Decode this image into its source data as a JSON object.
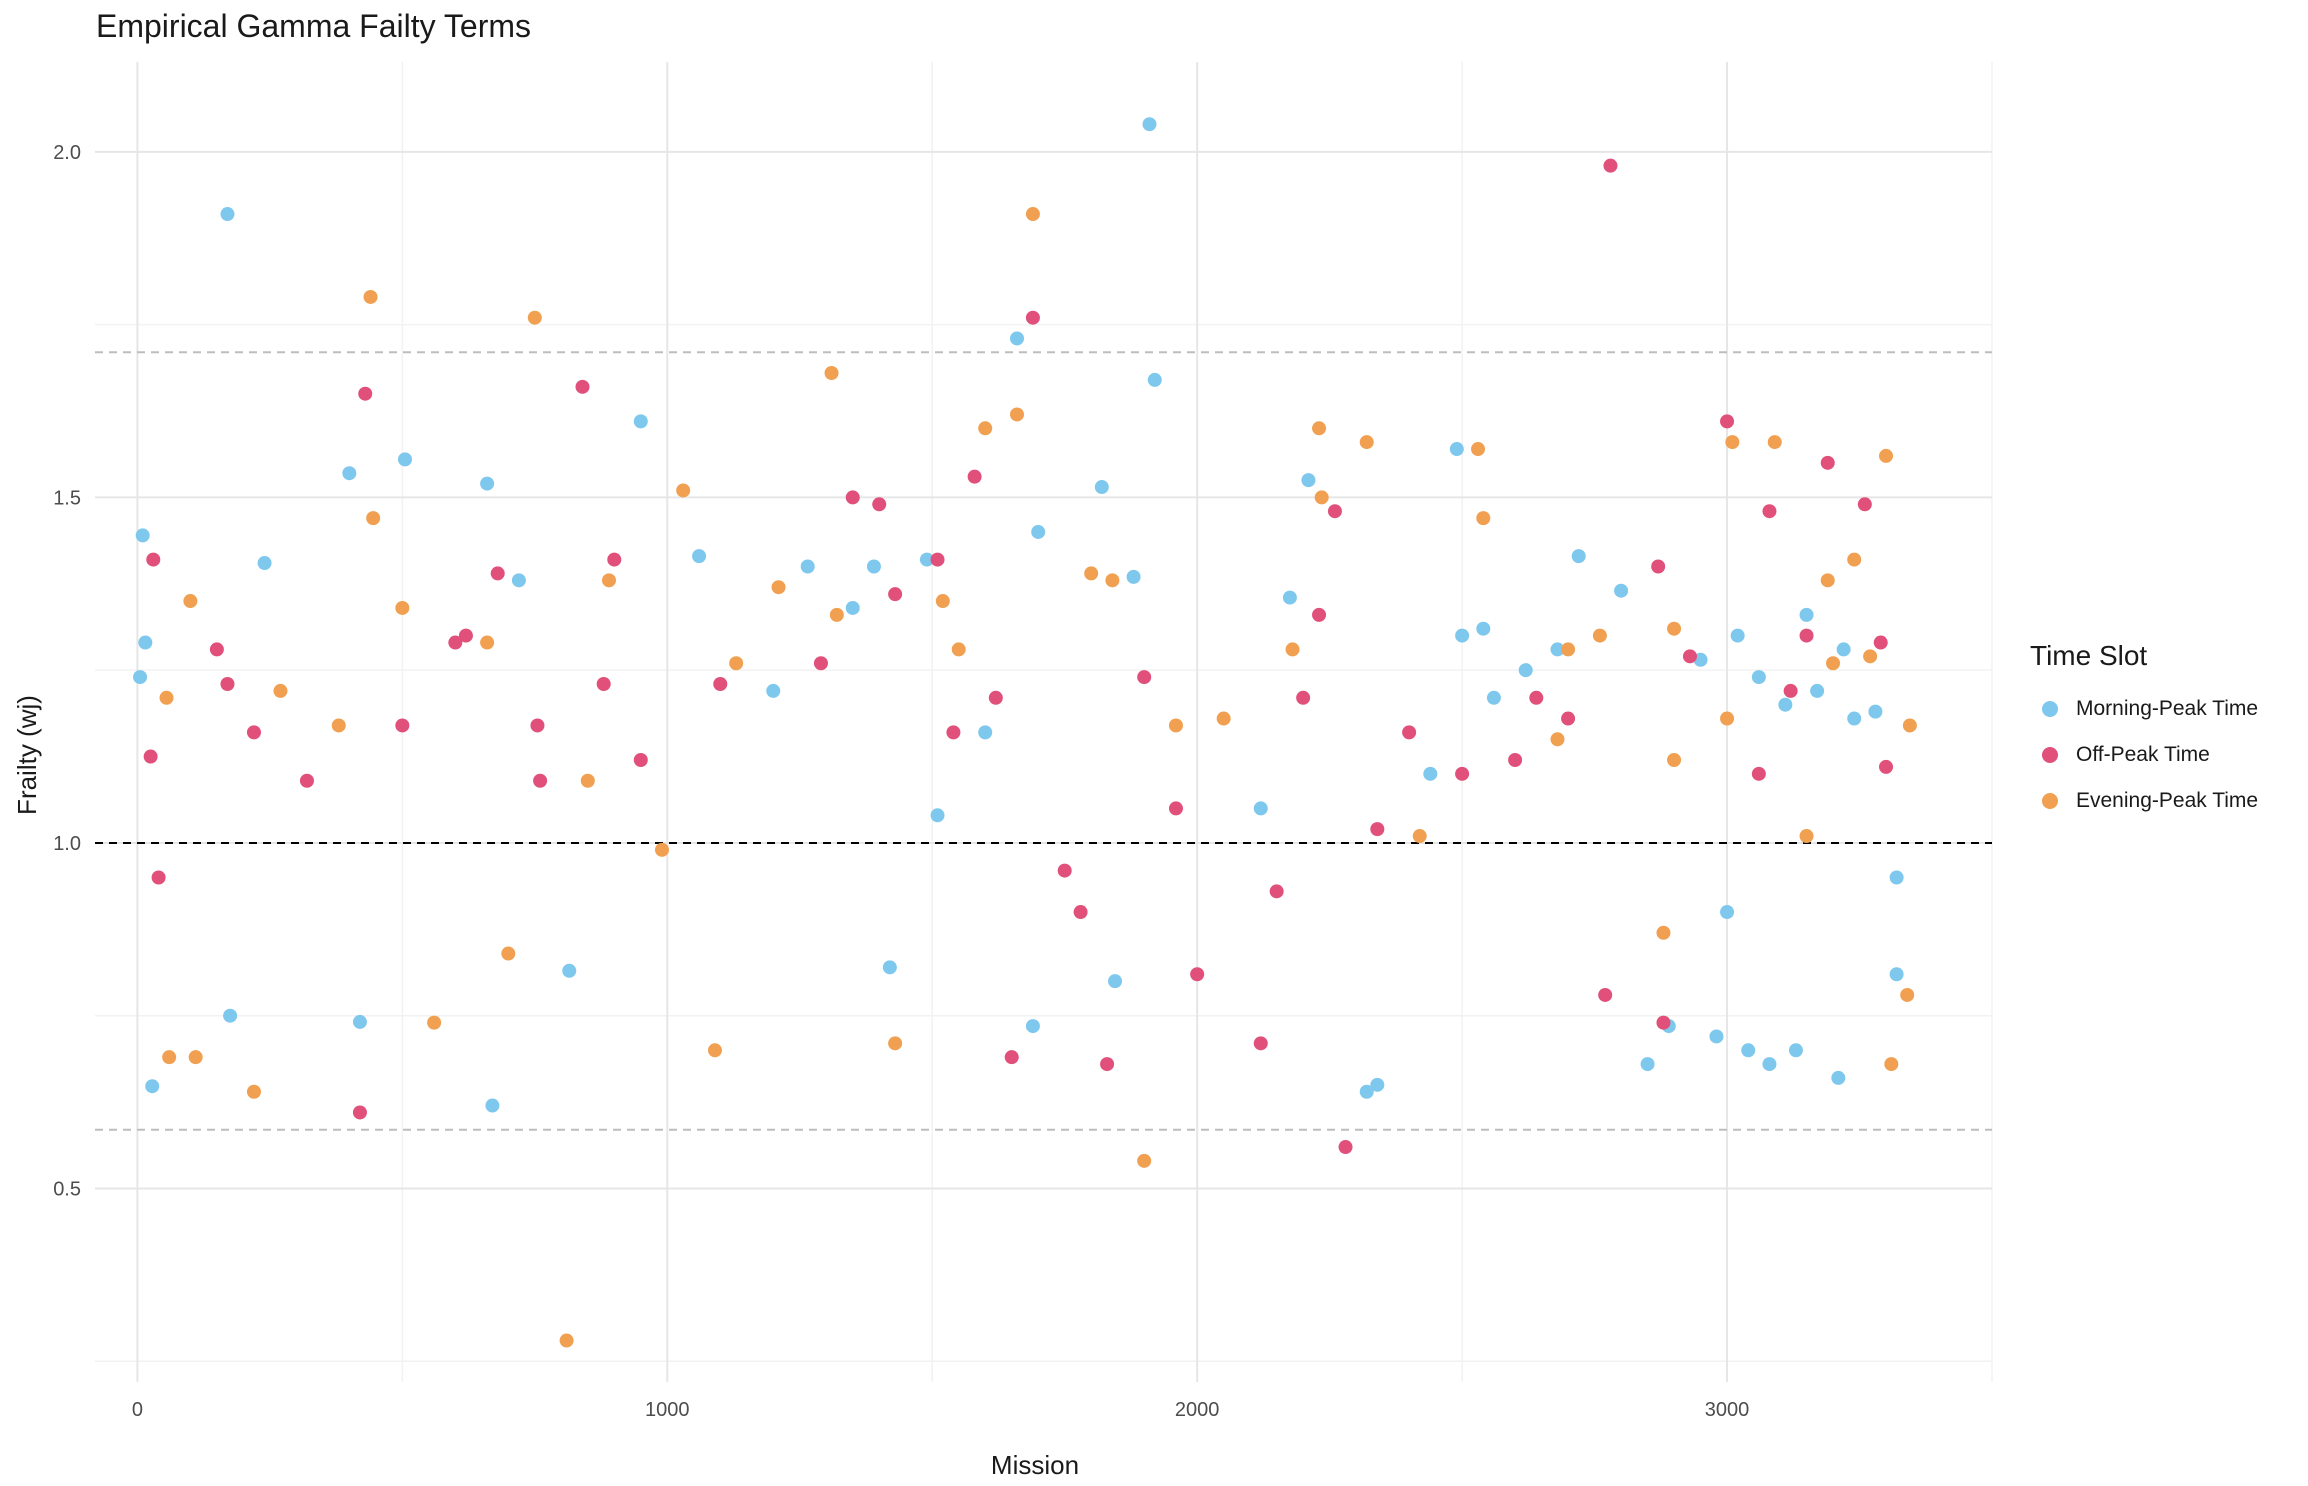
{
  "chart_data": {
    "type": "scatter",
    "title": "Empirical Gamma Failty Terms",
    "xlabel": "Mission",
    "ylabel": "Frailty (wj)",
    "xlim": [
      -80,
      3500
    ],
    "ylim": [
      0.22,
      2.13
    ],
    "x_ticks": [
      0,
      1000,
      2000,
      3000
    ],
    "x_tick_labels": [
      "0",
      "1000",
      "2000",
      "3000"
    ],
    "y_ticks": [
      0.5,
      1.0,
      1.5,
      2.0
    ],
    "y_tick_labels": [
      "0.5",
      "1.0",
      "1.5",
      "2.0"
    ],
    "grid": true,
    "legend": {
      "title": "Time Slot",
      "position": "right"
    },
    "reference_lines": [
      {
        "y": 1.0,
        "style": "dashed",
        "color": "#000000"
      },
      {
        "y": 1.71,
        "style": "dashed",
        "color": "#bdbdbd"
      },
      {
        "y": 0.585,
        "style": "dashed",
        "color": "#bdbdbd"
      }
    ],
    "series": [
      {
        "name": "Morning-Peak Time",
        "color": "#7ec8ee",
        "x": [
          5,
          10,
          15,
          28,
          170,
          175,
          240,
          400,
          420,
          505,
          660,
          670,
          720,
          815,
          950,
          1060,
          1200,
          1265,
          1350,
          1390,
          1420,
          1490,
          1510,
          1600,
          1660,
          1690,
          1700,
          1820,
          1845,
          1880,
          1910,
          1920,
          2120,
          2175,
          2210,
          2320,
          2340,
          2440,
          2490,
          2500,
          2540,
          2560,
          2620,
          2680,
          2720,
          2800,
          2850,
          2890,
          2950,
          2980,
          3020,
          3040,
          3060,
          3080,
          3110,
          3150,
          3170,
          3220,
          3240,
          3280,
          3320,
          3320,
          3210,
          3130,
          3000
        ],
        "y": [
          1.24,
          1.445,
          1.29,
          0.648,
          1.91,
          0.75,
          1.405,
          1.535,
          0.741,
          1.555,
          1.52,
          0.62,
          1.38,
          0.815,
          1.61,
          1.415,
          1.22,
          1.4,
          1.34,
          1.4,
          0.82,
          1.41,
          1.04,
          1.16,
          1.73,
          0.735,
          1.45,
          1.515,
          0.8,
          1.385,
          2.04,
          1.67,
          1.05,
          1.355,
          1.525,
          0.64,
          0.65,
          1.1,
          1.57,
          1.3,
          1.31,
          1.21,
          1.25,
          1.28,
          1.415,
          1.365,
          0.68,
          0.735,
          1.265,
          0.72,
          1.3,
          0.7,
          1.24,
          0.68,
          1.2,
          1.33,
          1.22,
          1.28,
          1.18,
          1.19,
          0.81,
          0.95,
          0.66,
          0.7,
          0.9
        ]
      },
      {
        "name": "Off-Peak Time",
        "color": "#e0507a",
        "x": [
          25,
          30,
          40,
          150,
          220,
          420,
          430,
          600,
          620,
          680,
          755,
          840,
          900,
          1350,
          1400,
          1430,
          1510,
          1580,
          1650,
          1690,
          1750,
          1830,
          1900,
          2000,
          2120,
          2200,
          2230,
          2260,
          2280,
          2400,
          2640,
          2700,
          2780,
          2770,
          2870,
          2880,
          3000,
          3080,
          3150,
          3190,
          3260,
          3290,
          3300,
          3120,
          3060,
          2930,
          2600,
          2500,
          2340,
          2150,
          1960,
          1780,
          1620,
          1540,
          1290,
          1100,
          950,
          880,
          760,
          500,
          320,
          170
        ],
        "y": [
          1.125,
          1.41,
          0.95,
          1.28,
          1.16,
          0.61,
          1.65,
          1.29,
          1.3,
          1.39,
          1.17,
          1.66,
          1.41,
          1.5,
          1.49,
          1.36,
          1.41,
          1.53,
          0.69,
          1.76,
          0.96,
          0.68,
          1.24,
          0.81,
          0.71,
          1.21,
          1.33,
          1.48,
          0.56,
          1.16,
          1.21,
          1.18,
          1.98,
          0.78,
          1.4,
          0.74,
          1.61,
          1.48,
          1.3,
          1.55,
          1.49,
          1.29,
          1.11,
          1.22,
          1.1,
          1.27,
          1.12,
          1.1,
          1.02,
          0.93,
          1.05,
          0.9,
          1.21,
          1.16,
          1.26,
          1.23,
          1.12,
          1.23,
          1.09,
          1.17,
          1.09,
          1.23
        ]
      },
      {
        "name": "Evening-Peak Time",
        "color": "#f0a050",
        "x": [
          55,
          60,
          100,
          110,
          220,
          440,
          445,
          500,
          560,
          660,
          750,
          810,
          850,
          890,
          1030,
          1090,
          1210,
          1310,
          1430,
          1520,
          1600,
          1660,
          1690,
          1800,
          1900,
          1960,
          2180,
          2230,
          2235,
          2320,
          2530,
          2540,
          2700,
          2760,
          2880,
          2900,
          3010,
          3090,
          3150,
          3190,
          3200,
          3240,
          3270,
          3300,
          3310,
          3340,
          3345,
          3000,
          2900,
          2680,
          2420,
          2050,
          1840,
          1550,
          1320,
          1130,
          990,
          700,
          380,
          270
        ],
        "y": [
          1.21,
          0.69,
          1.35,
          0.69,
          0.64,
          1.79,
          1.47,
          1.34,
          0.74,
          1.29,
          1.76,
          0.28,
          1.09,
          1.38,
          1.51,
          0.7,
          1.37,
          1.68,
          0.71,
          1.35,
          1.6,
          1.62,
          1.91,
          1.39,
          0.54,
          1.17,
          1.28,
          1.6,
          1.5,
          1.58,
          1.57,
          1.47,
          1.28,
          1.3,
          0.87,
          1.31,
          1.58,
          1.58,
          1.01,
          1.38,
          1.26,
          1.41,
          1.27,
          1.56,
          0.68,
          0.78,
          1.17,
          1.18,
          1.12,
          1.15,
          1.01,
          1.18,
          1.38,
          1.28,
          1.33,
          1.26,
          0.99,
          0.84,
          1.17,
          1.22
        ]
      }
    ]
  }
}
